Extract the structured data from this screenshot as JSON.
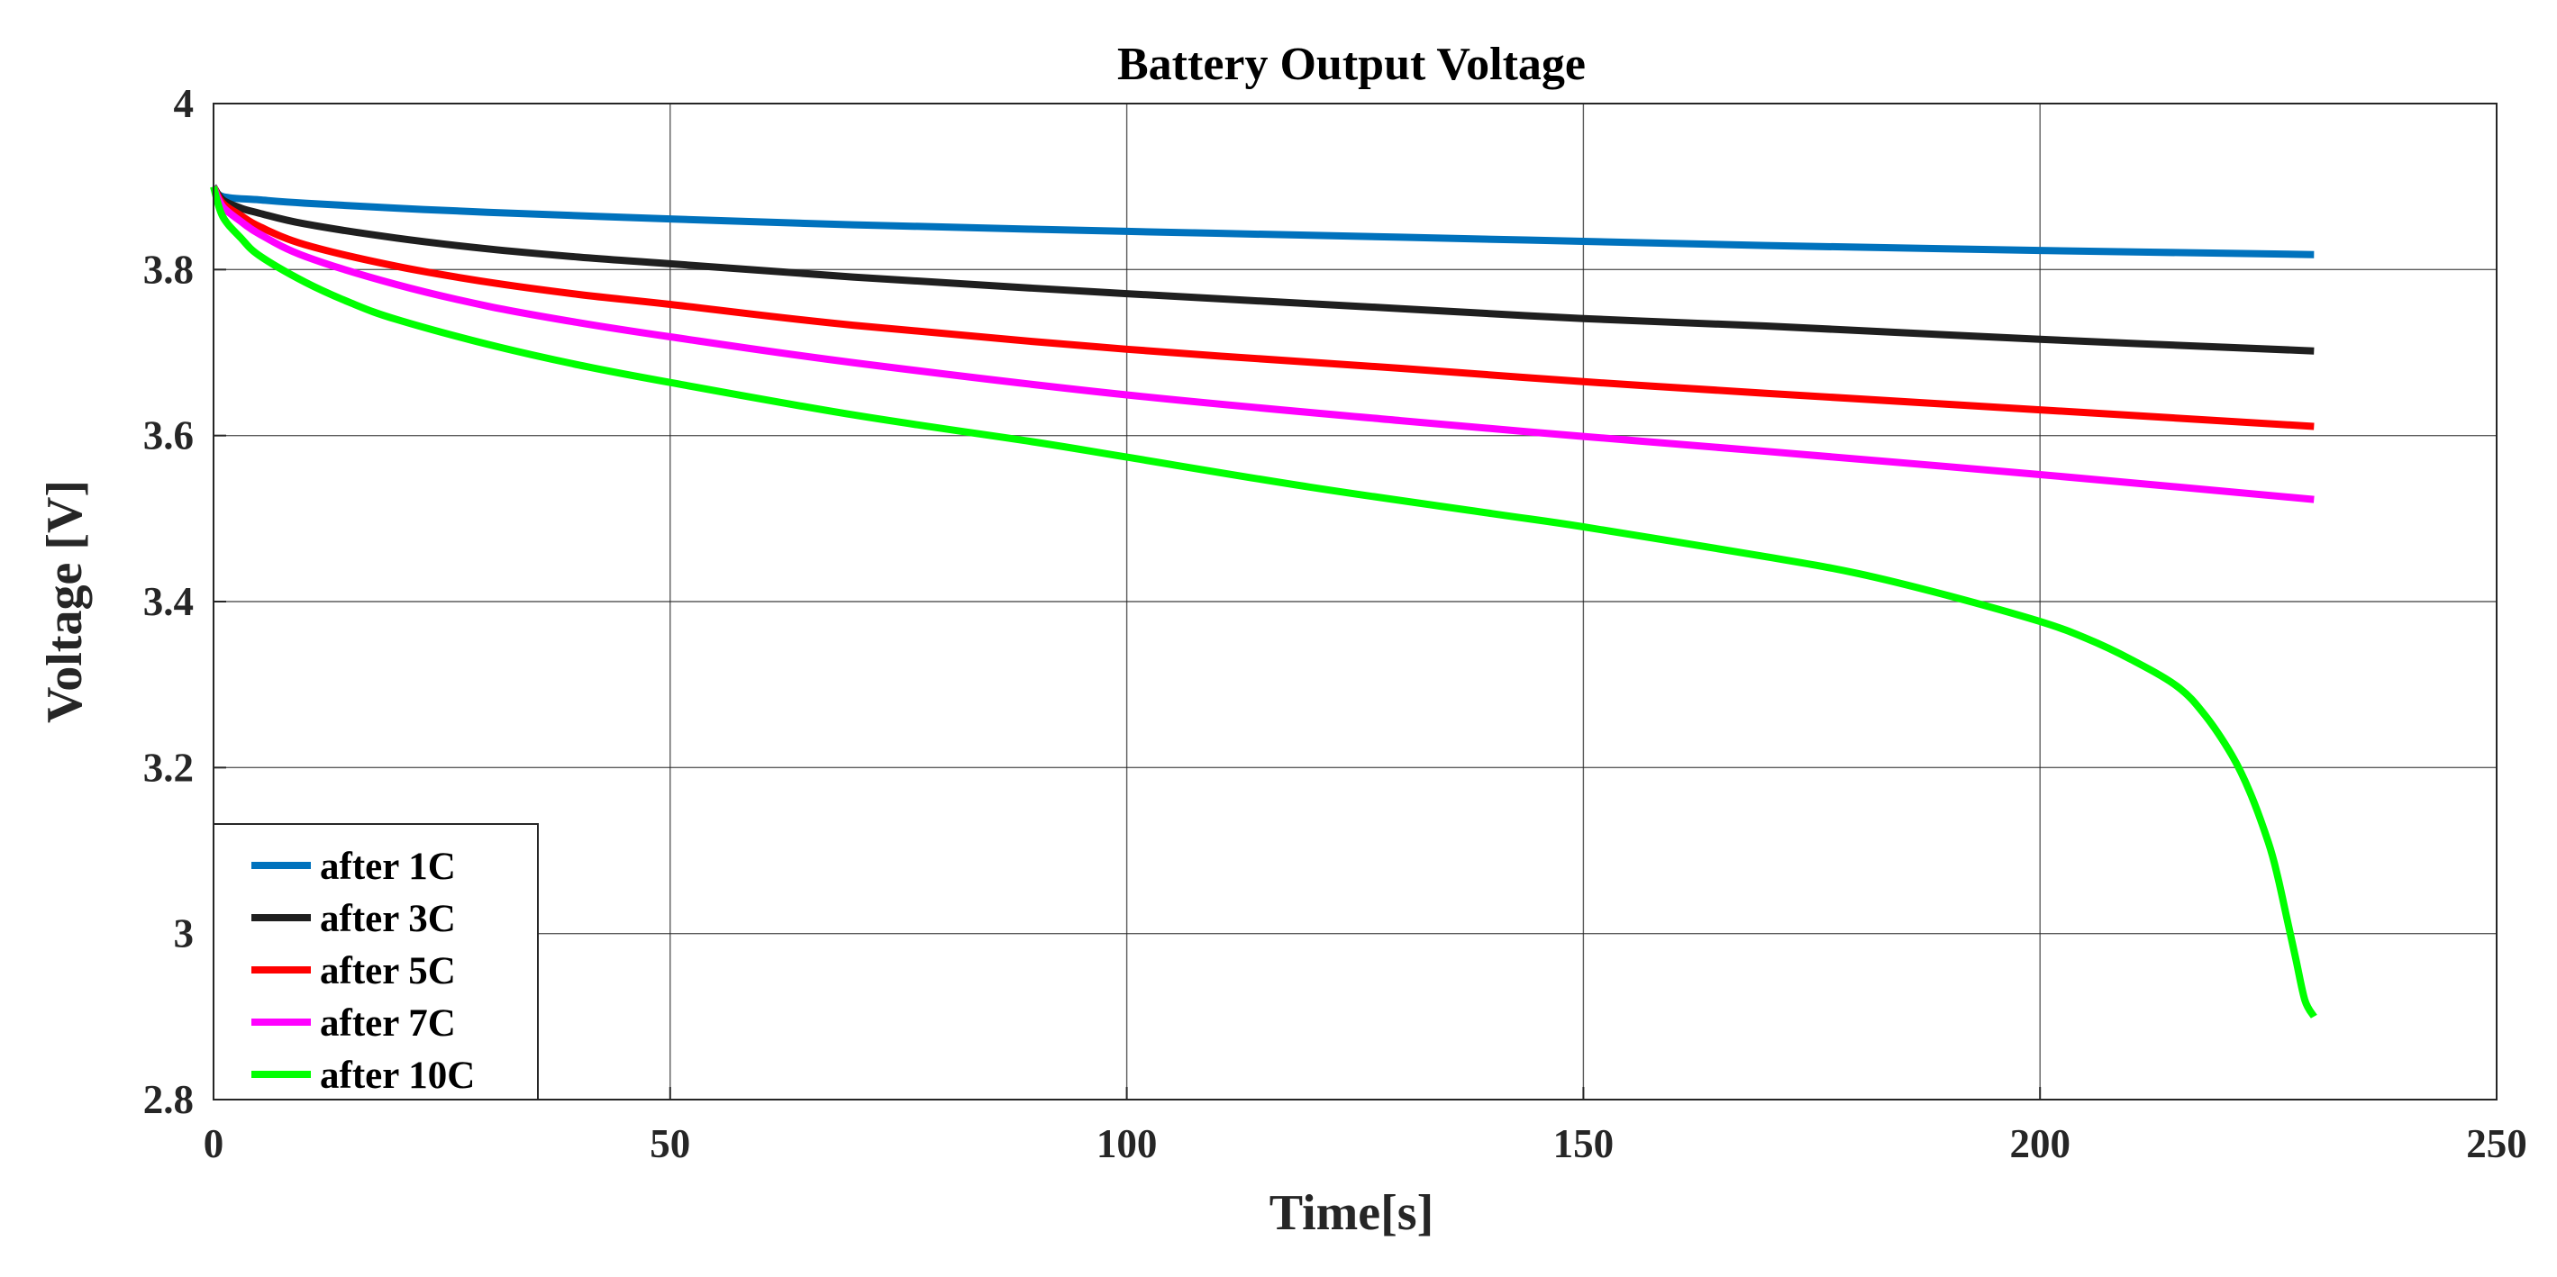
{
  "chart_data": {
    "type": "line",
    "title": "Battery Output Voltage",
    "xlabel": "Time[s]",
    "ylabel": "Voltage [V]",
    "xlim": [
      0,
      250
    ],
    "ylim": [
      2.8,
      4
    ],
    "xticks": [
      0,
      50,
      100,
      150,
      200,
      250
    ],
    "xtick_labels": [
      "0",
      "50",
      "100",
      "150",
      "200",
      "250"
    ],
    "yticks": [
      2.8,
      3.0,
      3.2,
      3.4,
      3.6,
      3.8,
      4.0
    ],
    "ytick_labels": [
      "2.8",
      "3",
      "3.2",
      "3.4",
      "3.6",
      "3.8",
      "4"
    ],
    "grid": true,
    "legend_position": "bottom-left",
    "series": [
      {
        "name": "after 1C",
        "color": "#0072BD",
        "x": [
          0,
          1,
          5,
          10,
          20,
          30,
          50,
          70,
          100,
          130,
          150,
          170,
          200,
          230
        ],
        "y": [
          3.9,
          3.888,
          3.884,
          3.88,
          3.874,
          3.869,
          3.861,
          3.854,
          3.846,
          3.839,
          3.834,
          3.829,
          3.823,
          3.818
        ]
      },
      {
        "name": "after 3C",
        "color": "#1f1f1f",
        "x": [
          0,
          1,
          3,
          5,
          10,
          20,
          30,
          40,
          50,
          70,
          100,
          130,
          150,
          170,
          200,
          230
        ],
        "y": [
          3.9,
          3.884,
          3.874,
          3.868,
          3.855,
          3.838,
          3.825,
          3.815,
          3.807,
          3.791,
          3.771,
          3.753,
          3.741,
          3.732,
          3.716,
          3.702
        ]
      },
      {
        "name": "after 5C",
        "color": "#FF0000",
        "x": [
          0,
          1,
          3,
          5,
          10,
          20,
          30,
          40,
          50,
          70,
          100,
          130,
          150,
          170,
          200,
          230
        ],
        "y": [
          3.9,
          3.88,
          3.865,
          3.852,
          3.83,
          3.804,
          3.785,
          3.77,
          3.758,
          3.733,
          3.704,
          3.681,
          3.665,
          3.651,
          3.631,
          3.611
        ]
      },
      {
        "name": "after 7C",
        "color": "#FF00FF",
        "x": [
          0,
          1,
          3,
          5,
          10,
          20,
          30,
          40,
          50,
          70,
          100,
          130,
          150,
          170,
          200,
          230
        ],
        "y": [
          3.9,
          3.876,
          3.858,
          3.843,
          3.816,
          3.782,
          3.756,
          3.736,
          3.719,
          3.688,
          3.649,
          3.618,
          3.599,
          3.581,
          3.553,
          3.523
        ]
      },
      {
        "name": "after 10C",
        "color": "#00FF00",
        "x": [
          0,
          1,
          3,
          5,
          10,
          15,
          20,
          30,
          40,
          50,
          70,
          90,
          100,
          120,
          140,
          150,
          170,
          180,
          190,
          200,
          205,
          210,
          215,
          218,
          221,
          223,
          225,
          226,
          227,
          228,
          229,
          230
        ],
        "y": [
          3.9,
          3.864,
          3.838,
          3.817,
          3.785,
          3.76,
          3.74,
          3.71,
          3.685,
          3.664,
          3.625,
          3.592,
          3.574,
          3.538,
          3.506,
          3.49,
          3.454,
          3.434,
          3.407,
          3.376,
          3.356,
          3.33,
          3.298,
          3.264,
          3.215,
          3.17,
          3.11,
          3.07,
          3.02,
          2.97,
          2.92,
          2.9
        ]
      }
    ]
  }
}
